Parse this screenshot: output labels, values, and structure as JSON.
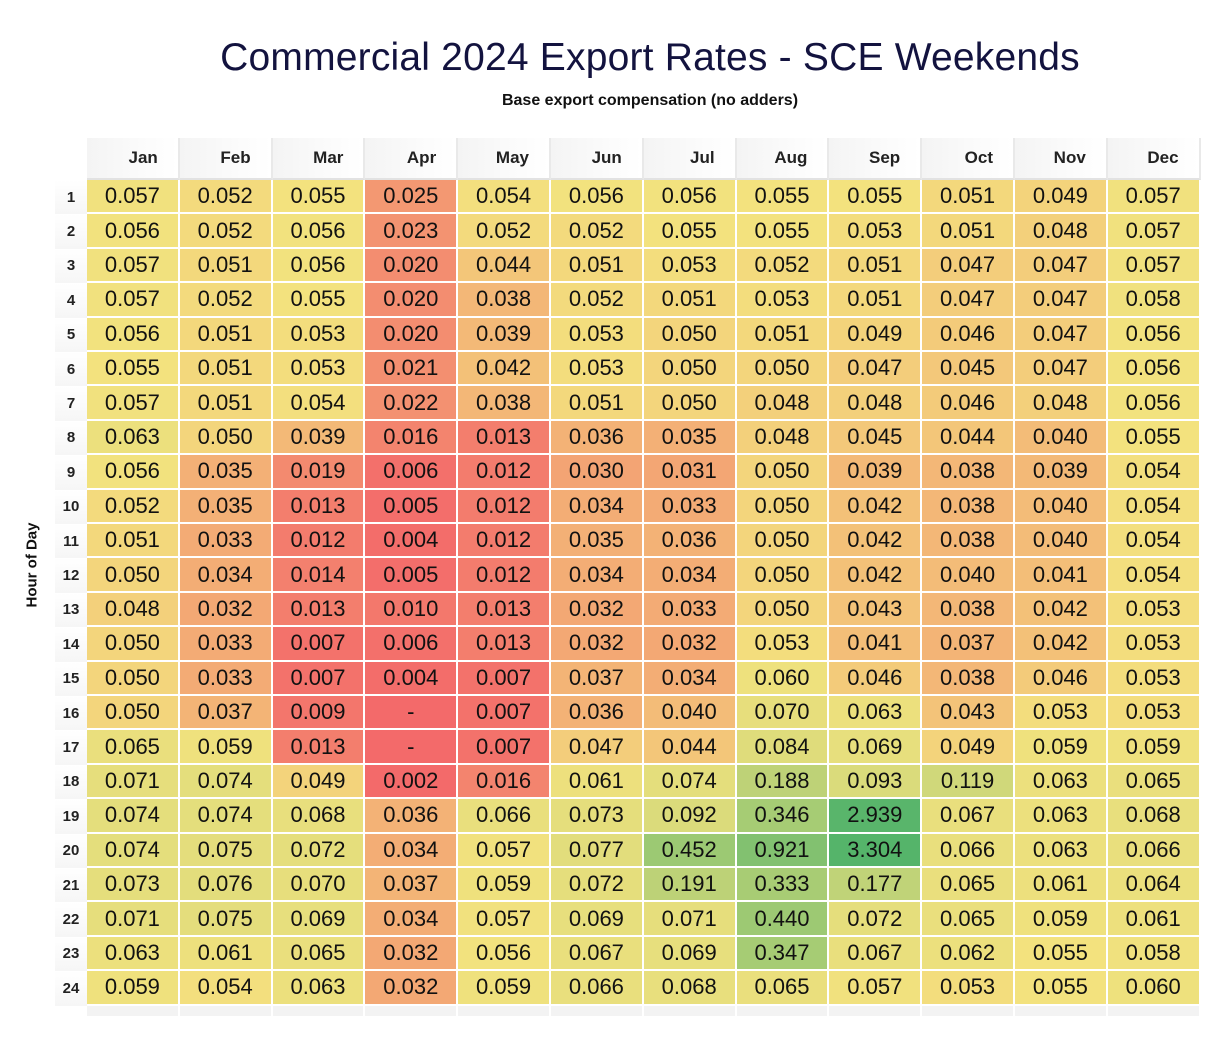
{
  "chart_data": {
    "type": "heatmap",
    "title": "Commercial 2024 Export Rates - SCE Weekends",
    "subtitle": "Base export compensation (no adders)",
    "xlabel": "",
    "ylabel": "Hour of Day",
    "columns": [
      "Jan",
      "Feb",
      "Mar",
      "Apr",
      "May",
      "Jun",
      "Jul",
      "Aug",
      "Sep",
      "Oct",
      "Nov",
      "Dec"
    ],
    "rows": [
      "1",
      "2",
      "3",
      "4",
      "5",
      "6",
      "7",
      "8",
      "9",
      "10",
      "11",
      "12",
      "13",
      "14",
      "15",
      "16",
      "17",
      "18",
      "19",
      "20",
      "21",
      "22",
      "23",
      "24"
    ],
    "values": [
      [
        0.057,
        0.052,
        0.055,
        0.025,
        0.054,
        0.056,
        0.056,
        0.055,
        0.055,
        0.051,
        0.049,
        0.057
      ],
      [
        0.056,
        0.052,
        0.056,
        0.023,
        0.052,
        0.052,
        0.055,
        0.055,
        0.053,
        0.051,
        0.048,
        0.057
      ],
      [
        0.057,
        0.051,
        0.056,
        0.02,
        0.044,
        0.051,
        0.053,
        0.052,
        0.051,
        0.047,
        0.047,
        0.057
      ],
      [
        0.057,
        0.052,
        0.055,
        0.02,
        0.038,
        0.052,
        0.051,
        0.053,
        0.051,
        0.047,
        0.047,
        0.058
      ],
      [
        0.056,
        0.051,
        0.053,
        0.02,
        0.039,
        0.053,
        0.05,
        0.051,
        0.049,
        0.046,
        0.047,
        0.056
      ],
      [
        0.055,
        0.051,
        0.053,
        0.021,
        0.042,
        0.053,
        0.05,
        0.05,
        0.047,
        0.045,
        0.047,
        0.056
      ],
      [
        0.057,
        0.051,
        0.054,
        0.022,
        0.038,
        0.051,
        0.05,
        0.048,
        0.048,
        0.046,
        0.048,
        0.056
      ],
      [
        0.063,
        0.05,
        0.039,
        0.016,
        0.013,
        0.036,
        0.035,
        0.048,
        0.045,
        0.044,
        0.04,
        0.055
      ],
      [
        0.056,
        0.035,
        0.019,
        0.006,
        0.012,
        0.03,
        0.031,
        0.05,
        0.039,
        0.038,
        0.039,
        0.054
      ],
      [
        0.052,
        0.035,
        0.013,
        0.005,
        0.012,
        0.034,
        0.033,
        0.05,
        0.042,
        0.038,
        0.04,
        0.054
      ],
      [
        0.051,
        0.033,
        0.012,
        0.004,
        0.012,
        0.035,
        0.036,
        0.05,
        0.042,
        0.038,
        0.04,
        0.054
      ],
      [
        0.05,
        0.034,
        0.014,
        0.005,
        0.012,
        0.034,
        0.034,
        0.05,
        0.042,
        0.04,
        0.041,
        0.054
      ],
      [
        0.048,
        0.032,
        0.013,
        0.01,
        0.013,
        0.032,
        0.033,
        0.05,
        0.043,
        0.038,
        0.042,
        0.053
      ],
      [
        0.05,
        0.033,
        0.007,
        0.006,
        0.013,
        0.032,
        0.032,
        0.053,
        0.041,
        0.037,
        0.042,
        0.053
      ],
      [
        0.05,
        0.033,
        0.007,
        0.004,
        0.007,
        0.037,
        0.034,
        0.06,
        0.046,
        0.038,
        0.046,
        0.053
      ],
      [
        0.05,
        0.037,
        0.009,
        null,
        0.007,
        0.036,
        0.04,
        0.07,
        0.063,
        0.043,
        0.053,
        0.053
      ],
      [
        0.065,
        0.059,
        0.013,
        null,
        0.007,
        0.047,
        0.044,
        0.084,
        0.069,
        0.049,
        0.059,
        0.059
      ],
      [
        0.071,
        0.074,
        0.049,
        0.002,
        0.016,
        0.061,
        0.074,
        0.188,
        0.093,
        0.119,
        0.063,
        0.065
      ],
      [
        0.074,
        0.074,
        0.068,
        0.036,
        0.066,
        0.073,
        0.092,
        0.346,
        2.939,
        0.067,
        0.063,
        0.068
      ],
      [
        0.074,
        0.075,
        0.072,
        0.034,
        0.057,
        0.077,
        0.452,
        0.921,
        3.304,
        0.066,
        0.063,
        0.066
      ],
      [
        0.073,
        0.076,
        0.07,
        0.037,
        0.059,
        0.072,
        0.191,
        0.333,
        0.177,
        0.065,
        0.061,
        0.064
      ],
      [
        0.071,
        0.075,
        0.069,
        0.034,
        0.057,
        0.069,
        0.071,
        0.44,
        0.072,
        0.065,
        0.059,
        0.061
      ],
      [
        0.063,
        0.061,
        0.065,
        0.032,
        0.056,
        0.067,
        0.069,
        0.347,
        0.067,
        0.062,
        0.055,
        0.058
      ],
      [
        0.059,
        0.054,
        0.063,
        0.032,
        0.059,
        0.066,
        0.068,
        0.065,
        0.057,
        0.053,
        0.055,
        0.06
      ]
    ],
    "missing_label": "-",
    "color_scale": {
      "low": "#f36a6a",
      "mid": "#f3e27e",
      "high": "#55b46a"
    }
  }
}
